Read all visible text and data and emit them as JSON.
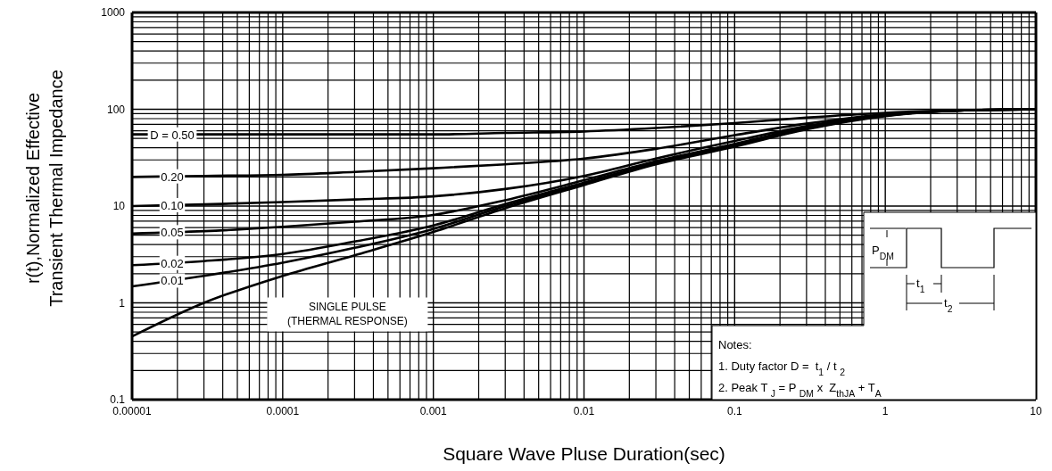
{
  "chart_data": {
    "type": "line",
    "xlabel": "Square Wave Pluse Duration(sec)",
    "ylabel": "r(t),Normalized Effective\nTransient Thermal Impedance",
    "log": "xy",
    "grid": true,
    "marker": "none",
    "line_style": "solid",
    "x": [
      1e-05,
      3e-05,
      0.0001,
      0.0003,
      0.001,
      0.003,
      0.01,
      0.03,
      0.1,
      0.3,
      1,
      3,
      10
    ],
    "xlim": [
      1e-05,
      10
    ],
    "xticks": [
      {
        "value": 1e-05,
        "label": "0.00001"
      },
      0.0001,
      0.001,
      0.01,
      0.1,
      1,
      10
    ],
    "ylim": [
      0.1,
      1000
    ],
    "yticks": [
      0.1,
      1,
      10,
      100,
      1000
    ],
    "series": [
      {
        "name": "D = 0.50",
        "color": "#000000",
        "values": [
          55,
          55,
          55,
          55,
          55,
          57,
          59,
          64,
          72,
          82,
          92,
          98,
          100
        ]
      },
      {
        "name": "0.20",
        "color": "#000000",
        "values": [
          20,
          20.5,
          21,
          22.5,
          24.6,
          27,
          31,
          39,
          54,
          71,
          89,
          97,
          100
        ]
      },
      {
        "name": "0.10",
        "color": "#000000",
        "values": [
          10,
          10.4,
          11,
          11.7,
          12.6,
          15,
          20.5,
          31,
          47,
          67,
          88,
          97,
          100
        ]
      },
      {
        "name": "0.05",
        "color": "#000000",
        "values": [
          5.2,
          5.5,
          6.1,
          6.9,
          8.1,
          11.5,
          18.5,
          29,
          44,
          65,
          87,
          97,
          100
        ]
      },
      {
        "name": "0.02",
        "color": "#000000",
        "values": [
          2.45,
          2.7,
          3.2,
          4.3,
          6.3,
          10.5,
          17.5,
          28,
          43,
          64,
          86,
          97,
          100
        ]
      },
      {
        "name": "0.01",
        "color": "#000000",
        "values": [
          1.48,
          1.9,
          2.6,
          3.7,
          5.8,
          10,
          17,
          27.5,
          42,
          63,
          86,
          97,
          100
        ]
      },
      {
        "name": "SINGLE PULSE\n(THERMAL RESPONSE)",
        "color": "#000000",
        "values": [
          0.45,
          1,
          1.9,
          3.1,
          5.4,
          9.5,
          16.5,
          27,
          41,
          62,
          85,
          97,
          100
        ]
      }
    ],
    "annotations": [
      "Notes:",
      "1. Duty factor D =  t$_{1}$ / t $_{2}$",
      "2. Peak T $_{J}$ = P $_{DM}$ x  Z$_{thJA}$ + T$_{A}$",
      "P$_{DM}$",
      "t$_{1}$",
      "t$_{2}$"
    ]
  }
}
